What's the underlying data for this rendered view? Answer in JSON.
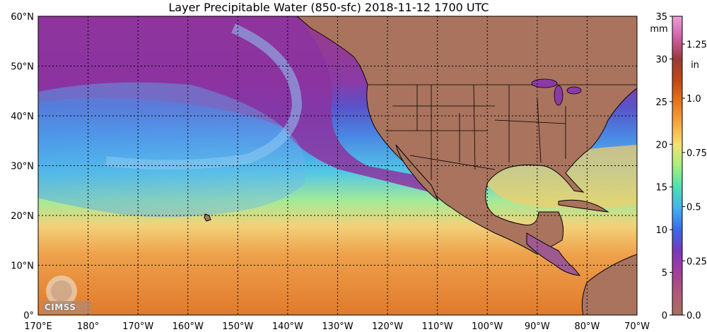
{
  "title": "Layer Precipitable Water (850-sfc)  2018-11-12 1700 UTC",
  "map": {
    "lon_labels": [
      "170°E",
      "180°",
      "170°W",
      "160°W",
      "150°W",
      "140°W",
      "130°W",
      "120°W",
      "110°W",
      "100°W",
      "90°W",
      "80°W",
      "70°W"
    ],
    "lat_labels": [
      "60°N",
      "50°N",
      "40°N",
      "30°N",
      "20°N",
      "10°N",
      "0°"
    ],
    "lon_range_deg_east": [
      170,
      290
    ],
    "lat_range": [
      0,
      60
    ],
    "gridlines": "dotted"
  },
  "colorbar": {
    "mm_label": "mm",
    "in_label": "in",
    "mm_ticks": [
      "35",
      "30",
      "25",
      "20",
      "15",
      "10",
      "5",
      "0"
    ],
    "in_ticks": [
      "1.25",
      "1.0",
      "0.75",
      "0.5",
      "0.25",
      "0.0"
    ],
    "mm_tick_values": [
      35,
      30,
      25,
      20,
      15,
      10,
      5,
      0
    ],
    "in_tick_values": [
      1.25,
      1.0,
      0.75,
      0.5,
      0.25,
      0.0
    ],
    "mm_max": 35,
    "colors_low_to_high": [
      "#a57060",
      "#b05a78",
      "#a0409a",
      "#7a38b8",
      "#3a6ae8",
      "#43b0f0",
      "#4fe0b0",
      "#a6f080",
      "#f6e070",
      "#f5a840",
      "#e4741c",
      "#c04814",
      "#9a3a3c",
      "#d060a8",
      "#e8a0d8"
    ]
  },
  "logo": {
    "text": "CIMSS"
  }
}
